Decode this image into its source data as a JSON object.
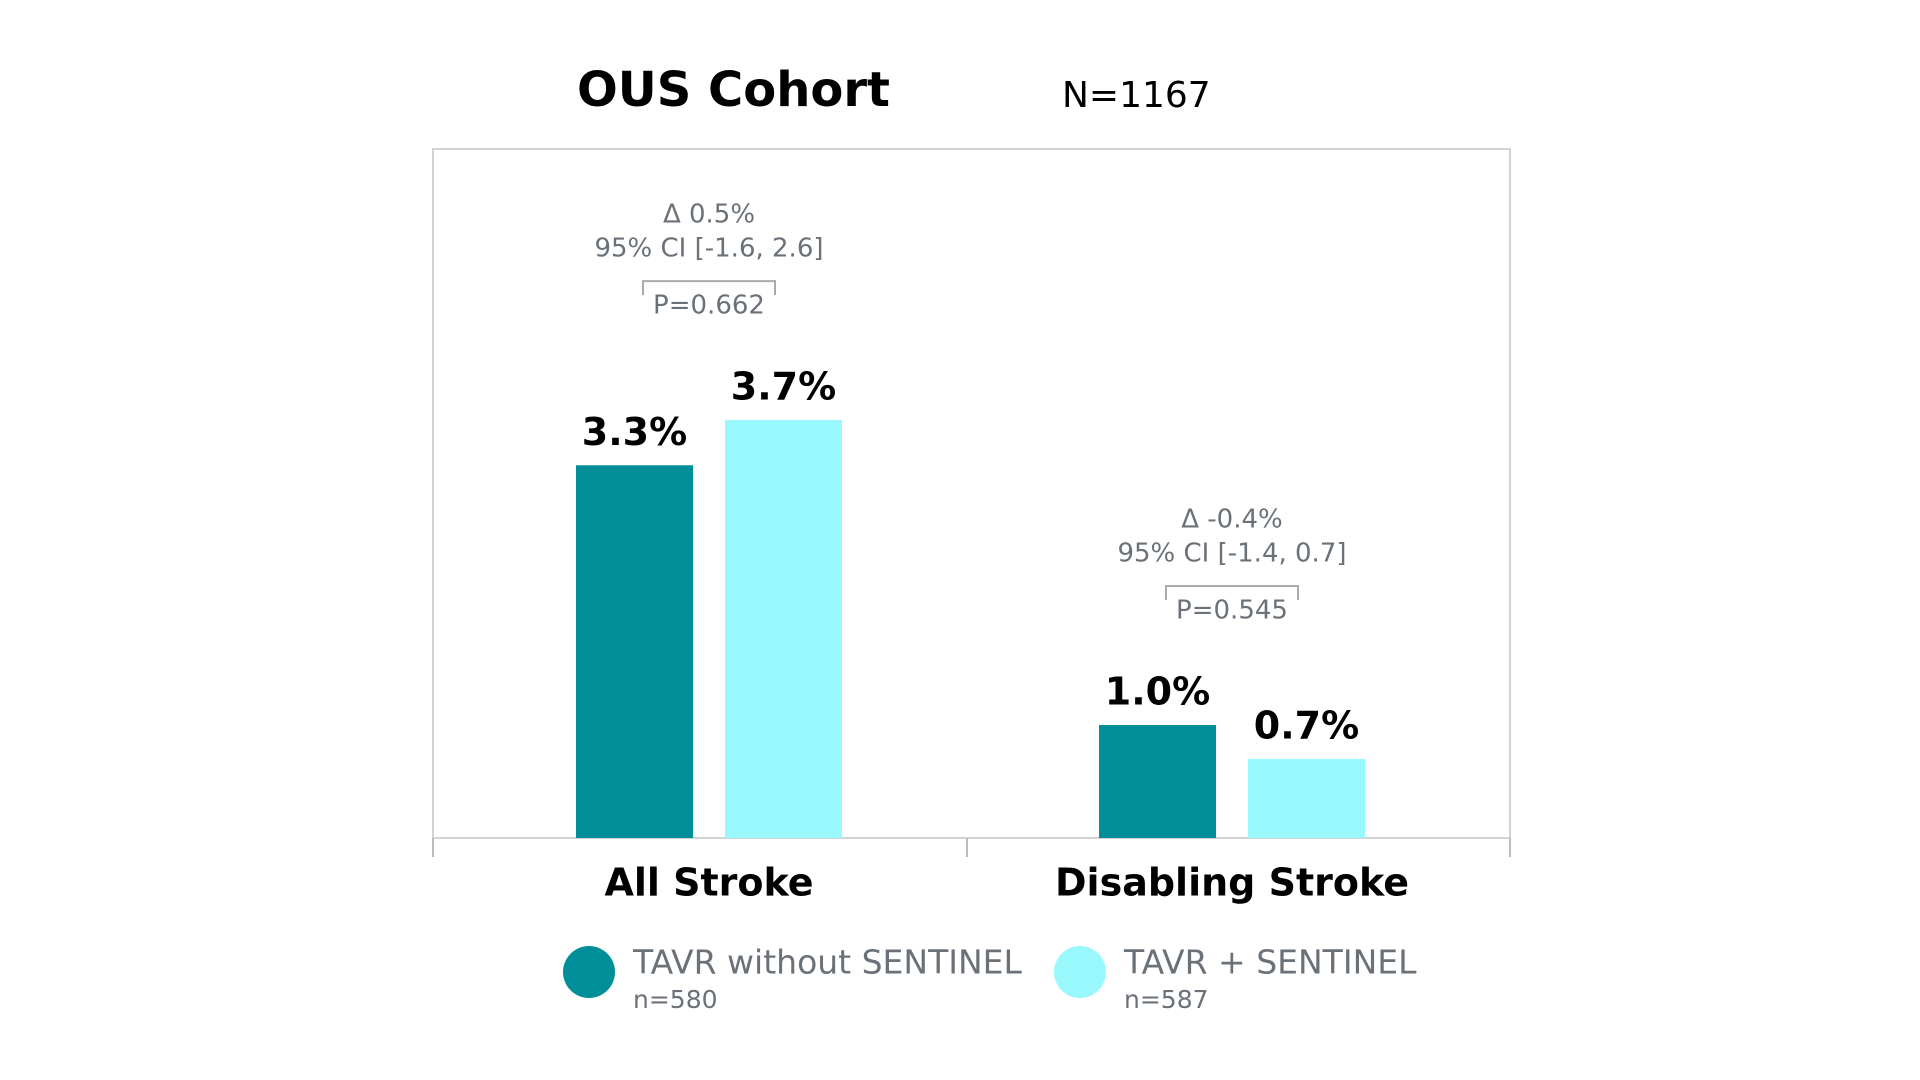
{
  "chart_data": {
    "type": "bar",
    "title": "OUS Cohort",
    "subtitle": "N=1167",
    "categories": [
      "All Stroke",
      "Disabling Stroke"
    ],
    "series": [
      {
        "name": "TAVR without SENTINEL",
        "n": "n=580",
        "color": "#008f98",
        "values": [
          3.3,
          1.0
        ],
        "value_labels": [
          "3.3%",
          "1.0%"
        ]
      },
      {
        "name": "TAVR + SENTINEL",
        "n": "n=587",
        "color": "#99f8fb",
        "values": [
          3.7,
          0.7
        ],
        "value_labels": [
          "3.7%",
          "0.7%"
        ]
      }
    ],
    "annotations": [
      {
        "delta": "Δ 0.5%",
        "ci": "95% CI [-1.6, 2.6]",
        "p": "P=0.662"
      },
      {
        "delta": "Δ -0.4%",
        "ci": "95% CI [-1.4, 0.7]",
        "p": "P=0.545"
      }
    ],
    "ylim": [
      0,
      6.1
    ]
  }
}
